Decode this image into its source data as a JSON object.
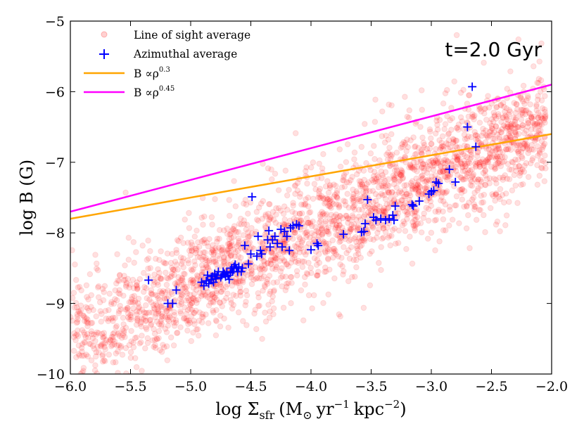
{
  "chart_data": {
    "type": "scatter",
    "xlabel": "log Σ",
    "xlabel_sub": "sfr",
    "xlabel_units": "(M",
    "xlabel_sun": "⊙",
    "xlabel_yr": "yr",
    "xlabel_yr_exp": "−1",
    "xlabel_kpc": "kpc",
    "xlabel_kpc_exp": "−2",
    "xlabel_close": ")",
    "ylabel": "log B (G)",
    "xlim": [
      -6.0,
      -2.0
    ],
    "ylim": [
      -10,
      -5
    ],
    "xticks": [
      -6.0,
      -5.5,
      -5.0,
      -4.5,
      -4.0,
      -3.5,
      -3.0,
      -2.5,
      -2.0
    ],
    "xtick_labels": [
      "−6.0",
      "−5.5",
      "−5.0",
      "−4.5",
      "−4.0",
      "−3.5",
      "−3.0",
      "−2.5",
      "−2.0"
    ],
    "yticks": [
      -10,
      -9,
      -8,
      -7,
      -6,
      -5
    ],
    "ytick_labels": [
      "−10",
      "−9",
      "−8",
      "−7",
      "−6",
      "−5"
    ],
    "annotation": "t=2.0 Gyr",
    "legend_position": "top-left",
    "legend": [
      {
        "label": "Line of sight average",
        "marker": "circle",
        "color": "#ff0000"
      },
      {
        "label": "Azimuthal average",
        "marker": "plus",
        "color": "#0000ff"
      },
      {
        "label": "B ∝ρ",
        "exp": "0.3",
        "marker": "line",
        "color": "#ffa500"
      },
      {
        "label": "B ∝ρ",
        "exp": "0.45",
        "marker": "line",
        "color": "#ff00ff"
      }
    ],
    "series": [
      {
        "name": "Line of sight average",
        "kind": "scatter-cloud",
        "color": "#ff0000",
        "opacity": 0.12,
        "count": 2600,
        "trend": {
          "slope": 0.6,
          "intercept": -5.6,
          "spread": 0.42
        },
        "x_range": [
          -6.0,
          -2.05
        ]
      },
      {
        "name": "Azimuthal average",
        "kind": "scatter",
        "color": "#0000ff",
        "points": [
          [
            -5.35,
            -8.67
          ],
          [
            -5.19,
            -9.0
          ],
          [
            -5.15,
            -9.0
          ],
          [
            -5.12,
            -8.81
          ],
          [
            -4.91,
            -8.7
          ],
          [
            -4.89,
            -8.75
          ],
          [
            -4.87,
            -8.68
          ],
          [
            -4.86,
            -8.6
          ],
          [
            -4.85,
            -8.72
          ],
          [
            -4.83,
            -8.66
          ],
          [
            -4.82,
            -8.62
          ],
          [
            -4.81,
            -8.7
          ],
          [
            -4.8,
            -8.58
          ],
          [
            -4.79,
            -8.65
          ],
          [
            -4.78,
            -8.6
          ],
          [
            -4.77,
            -8.55
          ],
          [
            -4.75,
            -8.63
          ],
          [
            -4.74,
            -8.6
          ],
          [
            -4.73,
            -8.55
          ],
          [
            -4.72,
            -8.58
          ],
          [
            -4.71,
            -8.62
          ],
          [
            -4.7,
            -8.55
          ],
          [
            -4.69,
            -8.6
          ],
          [
            -4.68,
            -8.66
          ],
          [
            -4.67,
            -8.57
          ],
          [
            -4.66,
            -8.5
          ],
          [
            -4.65,
            -8.55
          ],
          [
            -4.64,
            -8.48
          ],
          [
            -4.63,
            -8.45
          ],
          [
            -4.62,
            -8.5
          ],
          [
            -4.61,
            -8.55
          ],
          [
            -4.6,
            -8.48
          ],
          [
            -4.58,
            -8.55
          ],
          [
            -4.57,
            -8.5
          ],
          [
            -4.52,
            -8.44
          ],
          [
            -4.5,
            -8.3
          ],
          [
            -4.55,
            -8.18
          ],
          [
            -4.49,
            -7.49
          ],
          [
            -4.45,
            -8.33
          ],
          [
            -4.44,
            -8.05
          ],
          [
            -4.42,
            -8.25
          ],
          [
            -4.41,
            -8.3
          ],
          [
            -4.36,
            -8.1
          ],
          [
            -4.35,
            -7.97
          ],
          [
            -4.34,
            -8.2
          ],
          [
            -4.32,
            -8.1
          ],
          [
            -4.3,
            -8.05
          ],
          [
            -4.28,
            -8.15
          ],
          [
            -4.25,
            -7.95
          ],
          [
            -4.24,
            -8.2
          ],
          [
            -4.22,
            -7.98
          ],
          [
            -4.2,
            -8.05
          ],
          [
            -4.18,
            -8.25
          ],
          [
            -4.17,
            -7.93
          ],
          [
            -4.15,
            -7.9
          ],
          [
            -4.12,
            -7.88
          ],
          [
            -4.1,
            -7.9
          ],
          [
            -4.0,
            -8.24
          ],
          [
            -3.95,
            -8.15
          ],
          [
            -3.94,
            -8.18
          ],
          [
            -3.73,
            -8.02
          ],
          [
            -3.58,
            -7.99
          ],
          [
            -3.56,
            -7.98
          ],
          [
            -3.55,
            -7.87
          ],
          [
            -3.53,
            -7.53
          ],
          [
            -3.48,
            -7.78
          ],
          [
            -3.46,
            -7.82
          ],
          [
            -3.42,
            -7.8
          ],
          [
            -3.38,
            -7.82
          ],
          [
            -3.35,
            -7.8
          ],
          [
            -3.32,
            -7.75
          ],
          [
            -3.31,
            -7.82
          ],
          [
            -3.3,
            -7.62
          ],
          [
            -3.16,
            -7.6
          ],
          [
            -3.15,
            -7.62
          ],
          [
            -3.1,
            -7.55
          ],
          [
            -3.02,
            -7.45
          ],
          [
            -3.0,
            -7.42
          ],
          [
            -2.98,
            -7.4
          ],
          [
            -2.96,
            -7.28
          ],
          [
            -2.94,
            -7.3
          ],
          [
            -2.85,
            -7.1
          ],
          [
            -2.8,
            -7.28
          ],
          [
            -2.7,
            -6.5
          ],
          [
            -2.66,
            -5.93
          ],
          [
            -2.63,
            -6.78
          ]
        ]
      }
    ],
    "lines": [
      {
        "name": "B ∝ρ^0.3",
        "color": "#ffa500",
        "x": [
          -6.0,
          -2.0
        ],
        "y": [
          -7.8,
          -6.6
        ]
      },
      {
        "name": "B ∝ρ^0.45",
        "color": "#ff00ff",
        "x": [
          -6.0,
          -2.0
        ],
        "y": [
          -7.7,
          -5.9
        ]
      }
    ]
  }
}
